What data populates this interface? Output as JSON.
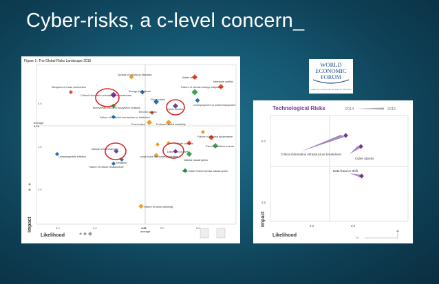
{
  "slide": {
    "title": "Cyber-risks, a c-level concern_"
  },
  "left_chart": {
    "figure_title": "Figure 1: The Global Risks Landscape 2015",
    "y_label": "Impact",
    "x_label": "Likelihood",
    "y_average_label": "average",
    "y_average_value": "4.74",
    "x_average_value": "4.82",
    "x_average_label": "average",
    "y_ticks": [
      "5.0",
      "4.5",
      "4.0"
    ],
    "x_ticks": [
      "3.0",
      "4.0",
      "5.0",
      "6.0"
    ],
    "labels": [
      "Water crises",
      "Spread of infectious diseases",
      "Weapons of mass destruction",
      "Critical information infrastructure breakdown",
      "Energy price shock",
      "Failure of climate-change adaptation",
      "Interstate conflict",
      "Biodiversity loss and ecosystem collapse",
      "Fiscal crises",
      "Unemployment or underemployment",
      "Cyber attacks",
      "Terrorist attacks",
      "Failure of financial mechanism or institution",
      "Food crises",
      "Profound social instability",
      "Failure of national governance",
      "State collapse",
      "Extreme weather events",
      "Misuse of technologies",
      "Data fraud or theft",
      "Unmanageable inflation",
      "Large-scale involuntary migration",
      "Natural catastrophes",
      "Deflation",
      "Failure of critical infrastructure",
      "Man-made environmental catastrophes",
      "Failure of urban planning"
    ]
  },
  "logo": {
    "line1": "WORLD",
    "line2": "ECONOMIC",
    "line3": "FORUM",
    "tagline": "COMMITTED TO IMPROVING THE STATE OF THE WORLD"
  },
  "right_chart": {
    "title": "Technological Risks",
    "year_start": "2014",
    "year_end": "2015",
    "y_label": "Impact",
    "x_label": "Likelihood",
    "y_ticks": [
      "5.0",
      "4.5"
    ],
    "x_ticks": [
      "4.0",
      "5.0"
    ],
    "x_corner_value": "7.0",
    "points": [
      {
        "label": "Critical information infrastructure breakdown"
      },
      {
        "label": "Cyber attacks"
      },
      {
        "label": "Data fraud or theft"
      }
    ]
  },
  "colors": {
    "economic": "#1f6fb5",
    "environmental": "#3aa14d",
    "geopolitical": "#e94b26",
    "societal": "#f39a1e",
    "technological": "#7a3d97",
    "highlight": "#d9262b"
  }
}
